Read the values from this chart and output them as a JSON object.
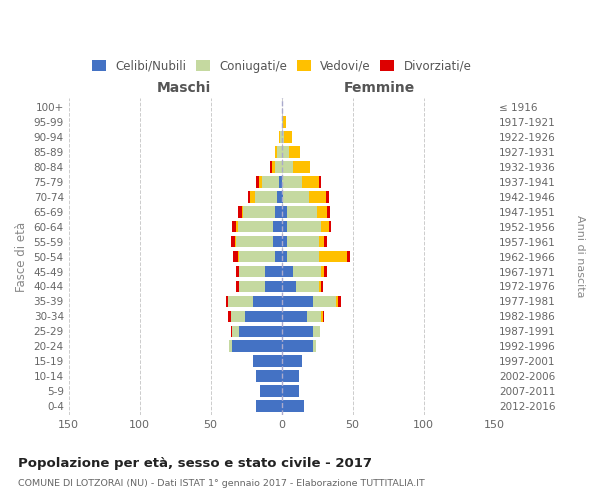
{
  "age_groups": [
    "0-4",
    "5-9",
    "10-14",
    "15-19",
    "20-24",
    "25-29",
    "30-34",
    "35-39",
    "40-44",
    "45-49",
    "50-54",
    "55-59",
    "60-64",
    "65-69",
    "70-74",
    "75-79",
    "80-84",
    "85-89",
    "90-94",
    "95-99",
    "100+"
  ],
  "birth_years": [
    "2012-2016",
    "2007-2011",
    "2002-2006",
    "1997-2001",
    "1992-1996",
    "1987-1991",
    "1982-1986",
    "1977-1981",
    "1972-1976",
    "1967-1971",
    "1962-1966",
    "1957-1961",
    "1952-1956",
    "1947-1951",
    "1942-1946",
    "1937-1941",
    "1932-1936",
    "1927-1931",
    "1922-1926",
    "1917-1921",
    "≤ 1916"
  ],
  "maschi_celibi": [
    18,
    15,
    18,
    20,
    35,
    30,
    26,
    20,
    12,
    12,
    5,
    6,
    6,
    5,
    3,
    2,
    0,
    0,
    0,
    0,
    0
  ],
  "maschi_coniugati": [
    0,
    0,
    0,
    0,
    2,
    5,
    10,
    18,
    18,
    18,
    25,
    26,
    25,
    22,
    16,
    12,
    5,
    3,
    1,
    0,
    0
  ],
  "maschi_vedovi": [
    0,
    0,
    0,
    0,
    0,
    0,
    0,
    0,
    0,
    0,
    1,
    1,
    1,
    1,
    3,
    2,
    2,
    2,
    1,
    0,
    0
  ],
  "maschi_divorziati": [
    0,
    0,
    0,
    0,
    0,
    1,
    2,
    1,
    2,
    2,
    3,
    3,
    3,
    3,
    2,
    2,
    1,
    0,
    0,
    0,
    0
  ],
  "femmine_nubili": [
    16,
    12,
    12,
    14,
    22,
    22,
    18,
    22,
    10,
    8,
    4,
    4,
    4,
    4,
    1,
    0,
    0,
    0,
    0,
    0,
    0
  ],
  "femmine_coniugate": [
    0,
    0,
    0,
    0,
    2,
    5,
    10,
    16,
    16,
    20,
    22,
    22,
    24,
    21,
    18,
    14,
    8,
    5,
    2,
    1,
    0
  ],
  "femmine_vedove": [
    0,
    0,
    0,
    0,
    0,
    0,
    1,
    2,
    2,
    2,
    20,
    4,
    5,
    7,
    12,
    12,
    12,
    8,
    5,
    2,
    0
  ],
  "femmine_divorziate": [
    0,
    0,
    0,
    0,
    0,
    0,
    1,
    2,
    1,
    2,
    2,
    2,
    2,
    2,
    2,
    2,
    0,
    0,
    0,
    0,
    0
  ],
  "color_celibi": "#4472c4",
  "color_coniugati": "#c5d9a0",
  "color_vedovi": "#ffc000",
  "color_divorziati": "#dd0000",
  "title": "Popolazione per età, sesso e stato civile - 2017",
  "subtitle": "COMUNE DI LOTZORAI (NU) - Dati ISTAT 1° gennaio 2017 - Elaborazione TUTTITALIA.IT",
  "legend_labels": [
    "Celibi/Nubili",
    "Coniugati/e",
    "Vedovi/e",
    "Divorziati/e"
  ],
  "xlim": 150,
  "bg_color": "#ffffff",
  "grid_color": "#cccccc"
}
